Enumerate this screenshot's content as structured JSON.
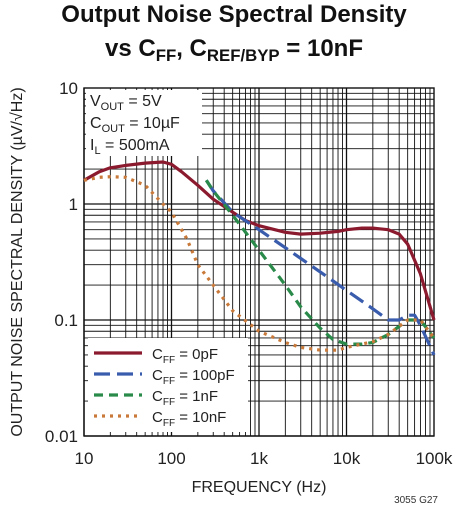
{
  "title": {
    "line1": "Output Noise Spectral Density",
    "line2_prefix": "vs C",
    "line2_sub1": "FF",
    "line2_mid": ", C",
    "line2_sub2": "REF/BYP",
    "line2_suffix": " = 10nF"
  },
  "figure_id": "3055 G27",
  "chart_data": {
    "type": "line",
    "xscale": "log",
    "yscale": "log",
    "xlim": [
      10,
      100000
    ],
    "ylim": [
      0.01,
      10
    ],
    "xlabel": "FREQUENCY (Hz)",
    "ylabel": "OUTPUT NOISE SPECTRAL DENSITY (µV/√Hz)",
    "x_ticks": [
      {
        "value": 10,
        "label": "10"
      },
      {
        "value": 100,
        "label": "100"
      },
      {
        "value": 1000,
        "label": "1k"
      },
      {
        "value": 10000,
        "label": "10k"
      },
      {
        "value": 100000,
        "label": "100k"
      }
    ],
    "y_ticks": [
      {
        "value": 10,
        "label": "10"
      },
      {
        "value": 1,
        "label": "1"
      },
      {
        "value": 0.1,
        "label": "0.1"
      },
      {
        "value": 0.01,
        "label": "0.01"
      }
    ],
    "grid": true,
    "annotations": [
      {
        "main": "V",
        "sub": "OUT",
        "rest": " = 5V"
      },
      {
        "main": "C",
        "sub": "OUT",
        "rest": " = 10µF"
      },
      {
        "main": "I",
        "sub": "L",
        "rest": " = 500mA"
      }
    ],
    "legend_position": "bottom-left",
    "series": [
      {
        "name": "C_FF = 0pF",
        "label_main": "C",
        "label_sub": "FF",
        "label_rest": " = 0pF",
        "color": "#8b1a2e",
        "dash": "solid",
        "points": [
          [
            10,
            1.6
          ],
          [
            15,
            1.9
          ],
          [
            20,
            2.05
          ],
          [
            30,
            2.15
          ],
          [
            50,
            2.25
          ],
          [
            80,
            2.3
          ],
          [
            100,
            2.2
          ],
          [
            130,
            1.9
          ],
          [
            200,
            1.45
          ],
          [
            300,
            1.1
          ],
          [
            500,
            0.85
          ],
          [
            700,
            0.72
          ],
          [
            1000,
            0.65
          ],
          [
            2000,
            0.57
          ],
          [
            3000,
            0.55
          ],
          [
            5000,
            0.56
          ],
          [
            8000,
            0.58
          ],
          [
            10000,
            0.6
          ],
          [
            15000,
            0.62
          ],
          [
            20000,
            0.62
          ],
          [
            30000,
            0.6
          ],
          [
            40000,
            0.55
          ],
          [
            50000,
            0.45
          ],
          [
            70000,
            0.25
          ],
          [
            100000,
            0.1
          ]
        ]
      },
      {
        "name": "C_FF = 100pF",
        "label_main": "C",
        "label_sub": "FF",
        "label_rest": " = 100pF",
        "color": "#3a5cad",
        "dash": "long-dash",
        "points": [
          [
            250,
            1.6
          ],
          [
            300,
            1.3
          ],
          [
            500,
            0.85
          ],
          [
            1000,
            0.6
          ],
          [
            2000,
            0.42
          ],
          [
            5000,
            0.26
          ],
          [
            10000,
            0.18
          ],
          [
            20000,
            0.125
          ],
          [
            30000,
            0.1
          ],
          [
            40000,
            0.1
          ],
          [
            50000,
            0.11
          ],
          [
            60000,
            0.11
          ],
          [
            70000,
            0.09
          ],
          [
            100000,
            0.05
          ]
        ]
      },
      {
        "name": "C_FF = 1nF",
        "label_main": "C",
        "label_sub": "FF",
        "label_rest": " = 1nF",
        "color": "#2a8a4a",
        "dash": "dash",
        "points": [
          [
            250,
            1.6
          ],
          [
            300,
            1.3
          ],
          [
            500,
            0.8
          ],
          [
            1000,
            0.4
          ],
          [
            2000,
            0.2
          ],
          [
            3000,
            0.13
          ],
          [
            5000,
            0.085
          ],
          [
            7000,
            0.068
          ],
          [
            10000,
            0.062
          ],
          [
            15000,
            0.062
          ],
          [
            20000,
            0.064
          ],
          [
            30000,
            0.075
          ],
          [
            50000,
            0.1
          ],
          [
            70000,
            0.1
          ],
          [
            100000,
            0.07
          ]
        ]
      },
      {
        "name": "C_FF = 10nF",
        "label_main": "C",
        "label_sub": "FF",
        "label_rest": " = 10nF",
        "color": "#c97a3a",
        "dash": "dot",
        "points": [
          [
            10,
            1.6
          ],
          [
            15,
            1.7
          ],
          [
            20,
            1.72
          ],
          [
            30,
            1.7
          ],
          [
            50,
            1.45
          ],
          [
            80,
            1.0
          ],
          [
            100,
            0.85
          ],
          [
            150,
            0.5
          ],
          [
            200,
            0.3
          ],
          [
            300,
            0.2
          ],
          [
            500,
            0.12
          ],
          [
            1000,
            0.08
          ],
          [
            2000,
            0.064
          ],
          [
            3000,
            0.058
          ],
          [
            5000,
            0.055
          ],
          [
            8000,
            0.055
          ],
          [
            10000,
            0.058
          ],
          [
            20000,
            0.065
          ],
          [
            30000,
            0.075
          ],
          [
            50000,
            0.1
          ],
          [
            70000,
            0.1
          ],
          [
            100000,
            0.07
          ]
        ]
      }
    ]
  }
}
